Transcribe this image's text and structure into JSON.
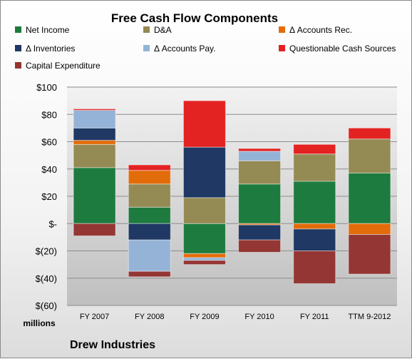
{
  "chart_data": {
    "type": "bar",
    "stacked": true,
    "title": "Free Cash Flow Components",
    "unit_label": "millions",
    "source_label": "Drew Industries",
    "categories": [
      "FY 2007",
      "FY 2008",
      "FY 2009",
      "FY 2010",
      "FY 2011",
      "TTM 9-2012"
    ],
    "ylim": [
      -60,
      100
    ],
    "yticks": [
      100,
      80,
      60,
      40,
      20,
      0,
      -20,
      -40,
      -60
    ],
    "ytick_labels": [
      "$100",
      "$80",
      "$60",
      "$40",
      "$20",
      "$-",
      "$(20)",
      "$(40)",
      "$(60)"
    ],
    "grid": true,
    "legend_position": "top",
    "series": [
      {
        "name": "Net Income",
        "color": "#1e7b3f",
        "values": [
          41,
          12,
          -22,
          29,
          31,
          37
        ]
      },
      {
        "name": "D&A",
        "color": "#948a54",
        "values": [
          17,
          17,
          19,
          17,
          20,
          25
        ]
      },
      {
        "name": "Δ Accounts Rec.",
        "color": "#e36c0a",
        "values": [
          3,
          10,
          -3,
          -1,
          -4,
          -8
        ]
      },
      {
        "name": "Δ Inventories",
        "color": "#1f3864",
        "values": [
          9,
          -12,
          37,
          -11,
          -16,
          0
        ]
      },
      {
        "name": "Δ Accounts Pay.",
        "color": "#95b3d7",
        "values": [
          13,
          -23,
          -2,
          7,
          0,
          0
        ]
      },
      {
        "name": "Questionable Cash Sources",
        "color": "#e32222",
        "values": [
          1,
          4,
          34,
          2,
          7,
          8
        ]
      },
      {
        "name": "Capital Expenditure",
        "color": "#943634",
        "values": [
          -9,
          -4,
          -3,
          -9,
          -24,
          -29
        ]
      }
    ]
  }
}
